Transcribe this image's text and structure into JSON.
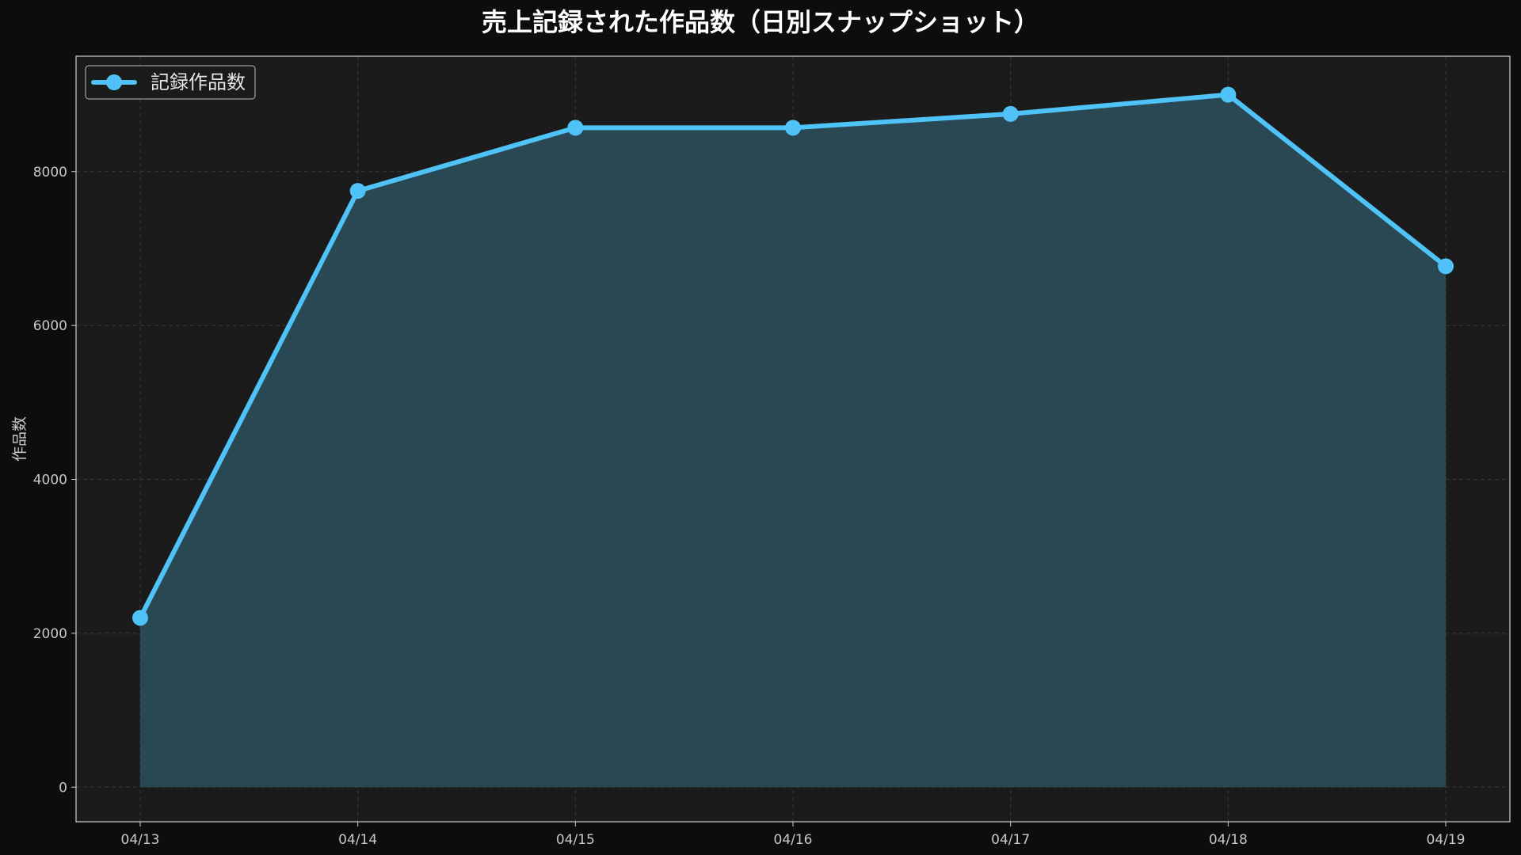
{
  "chart_data": {
    "type": "area",
    "title": "売上記録された作品数（日別スナップショット）",
    "xlabel": "",
    "ylabel": "作品数",
    "categories": [
      "04/13",
      "04/14",
      "04/15",
      "04/16",
      "04/17",
      "04/18",
      "04/19"
    ],
    "series": [
      {
        "name": "記録作品数",
        "values": [
          2200,
          7750,
          8570,
          8570,
          8750,
          9000,
          6770
        ]
      }
    ],
    "ylim": [
      -450,
      9500
    ],
    "yticks": [
      0,
      2000,
      4000,
      6000,
      8000
    ],
    "grid": true,
    "legend_position": "top-left",
    "colors": {
      "line": "#4fc3f7",
      "fill": "#2b4a57",
      "plot_background": "#1b1b1b",
      "page_background": "#0d0d0d",
      "grid": "#3a3a3a",
      "spine": "#cfcfcf"
    }
  }
}
